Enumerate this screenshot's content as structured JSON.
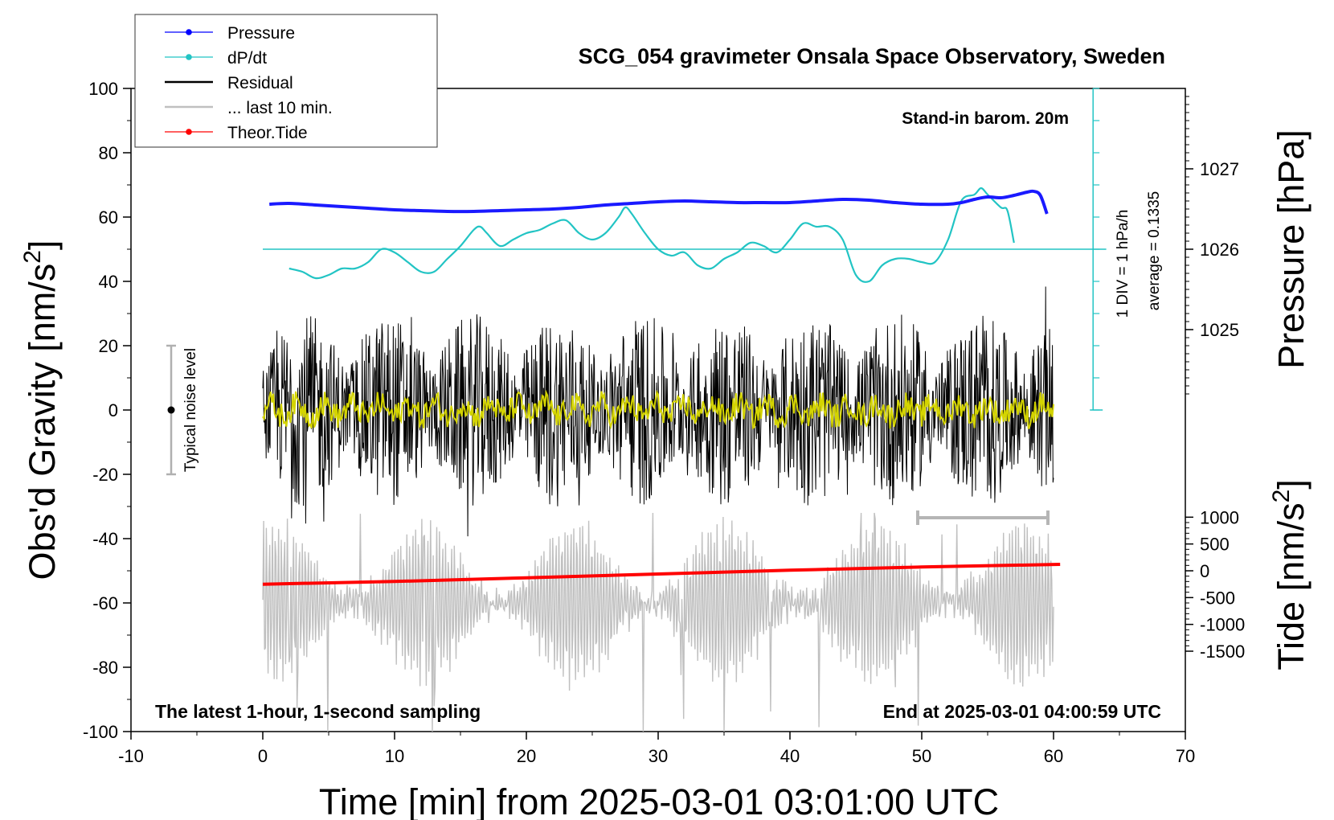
{
  "chart_data": {
    "type": "line",
    "title": "SCG_054 gravimeter Onsala Space Observatory, Sweden",
    "subtitle_left": "The latest 1-hour, 1-second sampling",
    "subtitle_right": "End at 2025-03-01 04:00:59 UTC",
    "barometer_note": "Stand-in barom. 20m",
    "noise_label": "Typical noise level",
    "ddt_scale_label": "1 DIV = 1 hPa/h",
    "ddt_average_label": "average = 0.1335",
    "xlabel": "Time [min] from 2025-03-01 03:01:00 UTC",
    "ylabel_left": "Obs'd Gravity [nm/s",
    "ylabel_left_sup": "2",
    "ylabel_left_end": "]",
    "ylabel_right_top": "Pressure [hPa]",
    "ylabel_right_bottom": "Tide [nm/s",
    "ylabel_right_bottom_sup": "2",
    "ylabel_right_bottom_end": "]",
    "xlim": [
      -10,
      70
    ],
    "ylim": [
      -100,
      100
    ],
    "xticks": [
      -10,
      0,
      10,
      20,
      30,
      40,
      50,
      60,
      70
    ],
    "yticks": [
      -100,
      -80,
      -60,
      -40,
      -20,
      0,
      20,
      40,
      60,
      80,
      100
    ],
    "pressure_axis": {
      "ticks": [
        1025,
        1026,
        1027
      ],
      "gravity_at_1026": 50,
      "gravity_per_hpa": 25
    },
    "tide_axis": {
      "ticks": [
        -1500,
        -1000,
        -500,
        0,
        500,
        1000
      ],
      "gravity_at_zero": -50,
      "gravity_per_unit": 0.01667
    },
    "legend": [
      {
        "label": "Pressure",
        "color": "#0000ff",
        "marker": true
      },
      {
        "label": "dP/dt",
        "color": "#22c4c4",
        "marker": true
      },
      {
        "label": "Residual",
        "color": "#000000",
        "marker": false
      },
      {
        "label": "... last 10 min.",
        "color": "#c0c0c0",
        "marker": false
      },
      {
        "label": "Theor.Tide",
        "color": "#ff0000",
        "marker": true
      }
    ],
    "series": [
      {
        "name": "Pressure",
        "axis": "pressure",
        "color": "#1a1aff",
        "x": [
          0.5,
          2,
          4,
          6,
          8,
          10,
          12,
          14,
          16,
          18,
          20,
          22,
          24,
          26,
          28,
          30,
          32,
          34,
          36,
          38,
          40,
          42,
          44,
          46,
          48,
          50,
          52,
          53,
          54,
          55,
          56,
          57,
          58,
          58.5,
          59,
          59.5
        ],
        "values": [
          1026.56,
          1026.57,
          1026.55,
          1026.53,
          1026.51,
          1026.49,
          1026.48,
          1026.47,
          1026.47,
          1026.48,
          1026.49,
          1026.5,
          1026.52,
          1026.55,
          1026.57,
          1026.59,
          1026.6,
          1026.59,
          1026.58,
          1026.58,
          1026.58,
          1026.6,
          1026.62,
          1026.61,
          1026.58,
          1026.56,
          1026.56,
          1026.58,
          1026.62,
          1026.65,
          1026.64,
          1026.67,
          1026.71,
          1026.72,
          1026.67,
          1026.44
        ]
      },
      {
        "name": "dP/dt",
        "axis": "gravity",
        "color": "#22c4c4",
        "x": [
          2,
          3,
          4,
          5,
          6,
          7,
          8,
          9,
          10,
          11,
          12,
          13,
          14,
          15,
          16,
          16.5,
          17,
          18,
          19,
          20,
          21,
          22,
          23,
          24,
          25,
          26,
          27,
          27.5,
          28,
          29,
          30,
          31,
          32,
          33,
          34,
          35,
          36,
          37,
          38,
          39,
          40,
          41,
          42,
          43,
          44,
          45,
          46,
          47,
          48,
          49,
          50,
          51,
          52,
          53,
          54,
          54.5,
          55,
          56,
          56.5,
          57
        ],
        "values": [
          44,
          43,
          41,
          42,
          44,
          44,
          46,
          50,
          49,
          46,
          43,
          43,
          47,
          51,
          56,
          57,
          55,
          51,
          53,
          55,
          56,
          58,
          59,
          55,
          53,
          55,
          60,
          63,
          61,
          55,
          50,
          48,
          49,
          45,
          44,
          47,
          49,
          52,
          51,
          49,
          53,
          58,
          57,
          57,
          53,
          42,
          40,
          45,
          47,
          47,
          46,
          46,
          53,
          65,
          67,
          69,
          67,
          63,
          62,
          52
        ]
      },
      {
        "name": "Residual",
        "axis": "gravity",
        "color": "#000000",
        "x": [
          0,
          60
        ],
        "values": [
          0,
          0
        ],
        "envelope": 30
      },
      {
        "name": "... last 10 min.",
        "axis": "gravity",
        "color": "#c0c0c0",
        "x": [
          0,
          60
        ],
        "values": [
          -60,
          -60
        ],
        "envelope": 25
      },
      {
        "name": "Theor.Tide",
        "axis": "tide",
        "color": "#ff0000",
        "x": [
          0,
          10,
          20,
          30,
          40,
          50,
          60.5
        ],
        "values": [
          -250,
          -200,
          -130,
          -60,
          10,
          70,
          120
        ]
      }
    ]
  }
}
